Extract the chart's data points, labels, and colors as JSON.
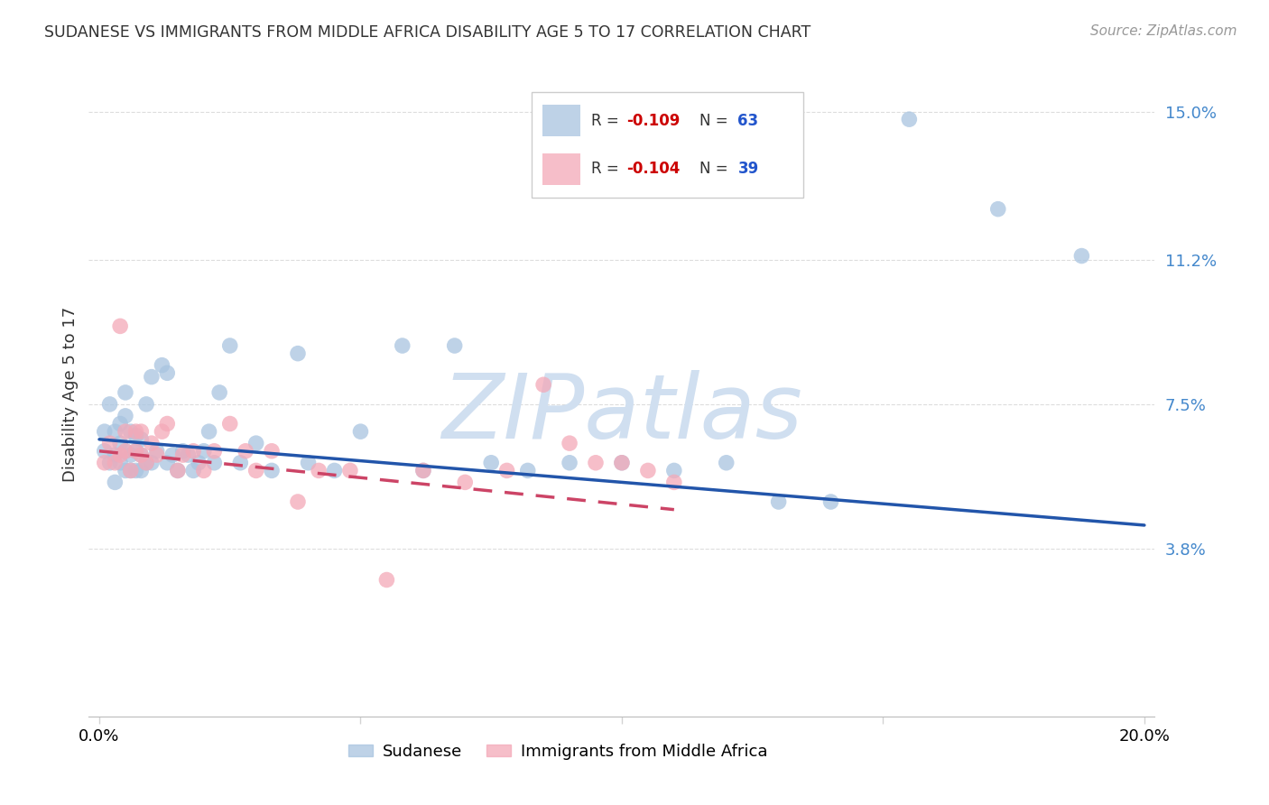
{
  "title": "SUDANESE VS IMMIGRANTS FROM MIDDLE AFRICA DISABILITY AGE 5 TO 17 CORRELATION CHART",
  "source": "Source: ZipAtlas.com",
  "ylabel": "Disability Age 5 to 17",
  "xlim": [
    -0.002,
    0.202
  ],
  "ylim": [
    -0.005,
    0.16
  ],
  "ytick_labels": [
    "3.8%",
    "7.5%",
    "11.2%",
    "15.0%"
  ],
  "ytick_values": [
    0.038,
    0.075,
    0.112,
    0.15
  ],
  "xtick_labels": [
    "0.0%",
    "",
    "",
    "",
    "20.0%"
  ],
  "xtick_values": [
    0.0,
    0.05,
    0.1,
    0.15,
    0.2
  ],
  "blue_color": "#a8c4e0",
  "pink_color": "#f4a9b8",
  "trend_blue_color": "#2255aa",
  "trend_pink_color": "#cc4466",
  "watermark_text": "ZIPatlas",
  "watermark_color": "#d0dff0",
  "legend_r_color": "#cc0000",
  "legend_n_color": "#2255cc",
  "legend_text_color": "#333333",
  "title_color": "#333333",
  "source_color": "#999999",
  "ytick_color": "#4488cc",
  "grid_color": "#dddddd",
  "blue_x": [
    0.001,
    0.001,
    0.002,
    0.002,
    0.003,
    0.003,
    0.003,
    0.004,
    0.004,
    0.004,
    0.005,
    0.005,
    0.005,
    0.005,
    0.006,
    0.006,
    0.006,
    0.007,
    0.007,
    0.007,
    0.008,
    0.008,
    0.008,
    0.009,
    0.009,
    0.01,
    0.01,
    0.011,
    0.012,
    0.013,
    0.013,
    0.014,
    0.015,
    0.016,
    0.017,
    0.018,
    0.019,
    0.02,
    0.021,
    0.022,
    0.023,
    0.025,
    0.027,
    0.03,
    0.033,
    0.038,
    0.04,
    0.045,
    0.05,
    0.058,
    0.062,
    0.068,
    0.075,
    0.082,
    0.09,
    0.1,
    0.11,
    0.12,
    0.13,
    0.14,
    0.155,
    0.172,
    0.188
  ],
  "blue_y": [
    0.063,
    0.068,
    0.06,
    0.075,
    0.062,
    0.068,
    0.055,
    0.06,
    0.065,
    0.07,
    0.058,
    0.063,
    0.072,
    0.078,
    0.058,
    0.062,
    0.068,
    0.058,
    0.063,
    0.067,
    0.058,
    0.062,
    0.066,
    0.06,
    0.075,
    0.06,
    0.082,
    0.063,
    0.085,
    0.06,
    0.083,
    0.062,
    0.058,
    0.063,
    0.062,
    0.058,
    0.06,
    0.063,
    0.068,
    0.06,
    0.078,
    0.09,
    0.06,
    0.065,
    0.058,
    0.088,
    0.06,
    0.058,
    0.068,
    0.09,
    0.058,
    0.09,
    0.06,
    0.058,
    0.06,
    0.06,
    0.058,
    0.06,
    0.05,
    0.05,
    0.148,
    0.125,
    0.113
  ],
  "pink_x": [
    0.001,
    0.002,
    0.003,
    0.004,
    0.004,
    0.005,
    0.005,
    0.006,
    0.007,
    0.007,
    0.008,
    0.008,
    0.009,
    0.01,
    0.011,
    0.012,
    0.013,
    0.015,
    0.016,
    0.018,
    0.02,
    0.022,
    0.025,
    0.028,
    0.03,
    0.033,
    0.038,
    0.042,
    0.048,
    0.055,
    0.062,
    0.07,
    0.078,
    0.085,
    0.09,
    0.095,
    0.1,
    0.105,
    0.11
  ],
  "pink_y": [
    0.06,
    0.065,
    0.06,
    0.095,
    0.062,
    0.063,
    0.068,
    0.058,
    0.063,
    0.068,
    0.062,
    0.068,
    0.06,
    0.065,
    0.062,
    0.068,
    0.07,
    0.058,
    0.062,
    0.063,
    0.058,
    0.063,
    0.07,
    0.063,
    0.058,
    0.063,
    0.05,
    0.058,
    0.058,
    0.03,
    0.058,
    0.055,
    0.058,
    0.08,
    0.065,
    0.06,
    0.06,
    0.058,
    0.055
  ],
  "blue_trend_x0": 0.0,
  "blue_trend_y0": 0.066,
  "blue_trend_x1": 0.2,
  "blue_trend_y1": 0.044,
  "pink_trend_x0": 0.0,
  "pink_trend_y0": 0.063,
  "pink_trend_x1": 0.11,
  "pink_trend_y1": 0.048
}
